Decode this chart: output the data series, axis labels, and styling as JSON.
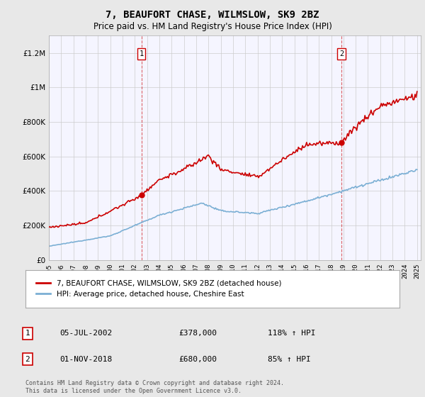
{
  "title": "7, BEAUFORT CHASE, WILMSLOW, SK9 2BZ",
  "subtitle": "Price paid vs. HM Land Registry's House Price Index (HPI)",
  "legend_line1": "7, BEAUFORT CHASE, WILMSLOW, SK9 2BZ (detached house)",
  "legend_line2": "HPI: Average price, detached house, Cheshire East",
  "transaction1": {
    "label": "1",
    "date": "05-JUL-2002",
    "price": "£378,000",
    "hpi": "118% ↑ HPI"
  },
  "transaction2": {
    "label": "2",
    "date": "01-NOV-2018",
    "price": "£680,000",
    "hpi": "85% ↑ HPI"
  },
  "footnote": "Contains HM Land Registry data © Crown copyright and database right 2024.\nThis data is licensed under the Open Government Licence v3.0.",
  "hpi_color": "#7bafd4",
  "price_color": "#cc0000",
  "dashed_color": "#cc0000",
  "marker_color": "#cc0000",
  "background_color": "#e8e8e8",
  "plot_background": "#f5f5ff",
  "ylim": [
    0,
    1300000
  ],
  "yticks": [
    0,
    200000,
    400000,
    600000,
    800000,
    1000000,
    1200000
  ],
  "year_start": 1995,
  "year_end": 2025,
  "t1_year": 2002.542,
  "t1_price": 378000,
  "t2_year": 2018.833,
  "t2_price": 680000
}
